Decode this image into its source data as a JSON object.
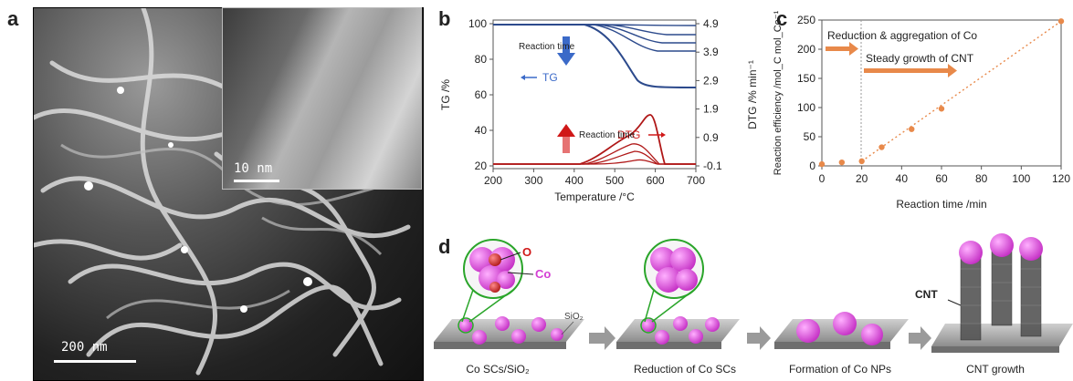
{
  "panels": {
    "a": "a",
    "b": "b",
    "c": "c",
    "d": "d"
  },
  "panel_a": {
    "main_scale": "200 nm",
    "inset_scale": "10 nm"
  },
  "chart_b": {
    "type": "line",
    "xlabel": "Temperature /°C",
    "ylabel_left": "TG /%",
    "ylabel_right": "DTG /% min⁻¹",
    "x_ticks": [
      "200",
      "300",
      "400",
      "500",
      "600",
      "700"
    ],
    "y_left_ticks": [
      "20",
      "40",
      "60",
      "80",
      "100"
    ],
    "y_right_ticks": [
      "-0.1",
      "0.9",
      "1.9",
      "2.9",
      "3.9",
      "4.9"
    ],
    "annotations": {
      "reaction_time_top": "Reaction time",
      "tg_label": "TG",
      "dtg_label": "DTG",
      "reaction_time_bottom": "Reaction time"
    },
    "colors": {
      "tg": "#2c4a8c",
      "dtg": "#b01818"
    }
  },
  "chart_data": {
    "type": "scatter",
    "xlabel": "Reaction time /min",
    "ylabel": "Reaction efficiency /mol_C mol_Co⁻¹",
    "xlim": [
      0,
      120
    ],
    "ylim": [
      0,
      250
    ],
    "x_ticks": [
      "0",
      "20",
      "40",
      "60",
      "80",
      "100",
      "120"
    ],
    "y_ticks": [
      "0",
      "50",
      "100",
      "150",
      "200",
      "250"
    ],
    "points": [
      {
        "x": 0,
        "y": 3
      },
      {
        "x": 10,
        "y": 6
      },
      {
        "x": 20,
        "y": 8
      },
      {
        "x": 30,
        "y": 32
      },
      {
        "x": 45,
        "y": 63
      },
      {
        "x": 60,
        "y": 98
      },
      {
        "x": 120,
        "y": 248
      }
    ],
    "annotations": {
      "phase1": "Reduction & aggregation of Co",
      "phase2": "Steady growth of CNT"
    },
    "color": "#e8894a"
  },
  "panel_d": {
    "labels": {
      "o": "O",
      "co": "Co",
      "sio2": "SiO₂",
      "cnt": "CNT"
    },
    "captions": [
      "Co SCs/SiO₂",
      "Reduction of Co SCs",
      "Formation of Co NPs",
      "CNT growth"
    ]
  }
}
